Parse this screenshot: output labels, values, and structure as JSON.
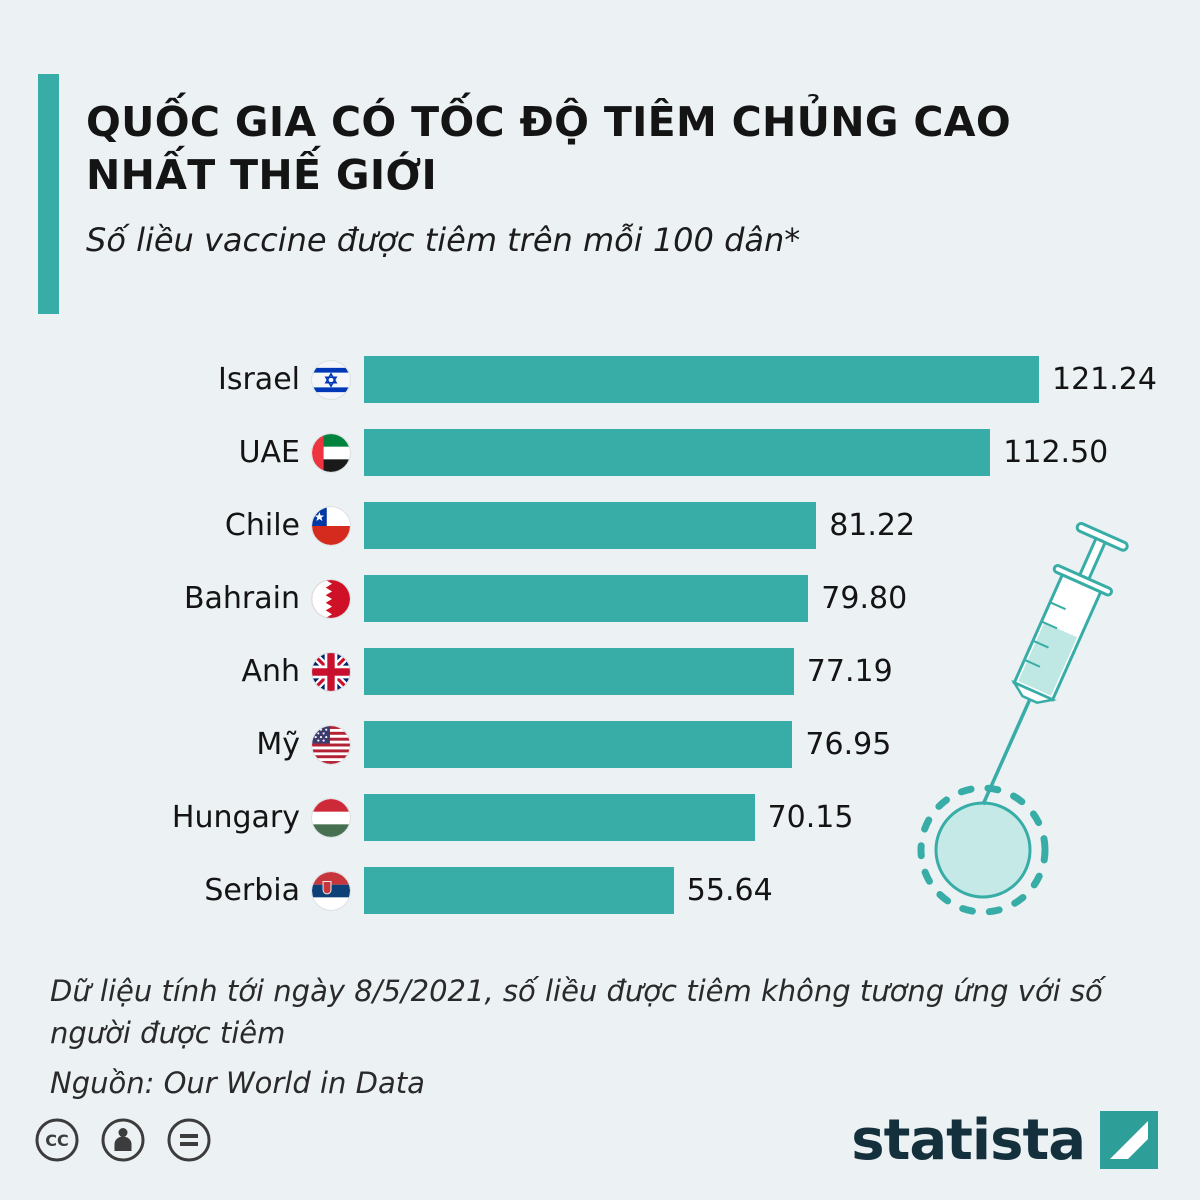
{
  "colors": {
    "accent": "#38ADA7",
    "bar": "#38ADA7",
    "background": "#ECF1F4",
    "title_text": "#141414",
    "logo_square": "#2E9E98",
    "logo_text": "#15303D"
  },
  "header": {
    "title": "QUỐC GIA CÓ TỐC ĐỘ TIÊM CHỦNG CAO NHẤT THẾ GIỚI",
    "subtitle": "Số liều vaccine được tiêm trên mỗi 100 dân*"
  },
  "chart_data": {
    "type": "bar",
    "orientation": "horizontal",
    "title": "QUỐC GIA CÓ TỐC ĐỘ TIÊM CHỦNG CAO NHẤT THẾ GIỚI",
    "subtitle": "Số liều vaccine được tiêm trên mỗi 100 dân*",
    "unit": "liều vaccine trên mỗi 100 dân",
    "xlim": [
      0,
      121.24
    ],
    "grid": false,
    "legend": false,
    "categories": [
      "Israel",
      "UAE",
      "Chile",
      "Bahrain",
      "Anh",
      "Mỹ",
      "Hungary",
      "Serbia"
    ],
    "values": [
      121.24,
      112.5,
      81.22,
      79.8,
      77.19,
      76.95,
      70.15,
      55.64
    ],
    "value_labels": [
      "121.24",
      "112.50",
      "81.22",
      "79.80",
      "77.19",
      "76.95",
      "70.15",
      "55.64"
    ],
    "flags": [
      "israel-flag-icon",
      "uae-flag-icon",
      "chile-flag-icon",
      "bahrain-flag-icon",
      "uk-flag-icon",
      "usa-flag-icon",
      "hungary-flag-icon",
      "serbia-flag-icon"
    ]
  },
  "footer": {
    "note": "Dữ liệu tính tới ngày 8/5/2021, số liều được tiêm không tương ứng với số người được tiêm",
    "source": "Nguồn: Our World in Data",
    "brand": "statista",
    "license_icons": [
      "cc-icon",
      "attribution-icon",
      "equals-icon"
    ]
  }
}
